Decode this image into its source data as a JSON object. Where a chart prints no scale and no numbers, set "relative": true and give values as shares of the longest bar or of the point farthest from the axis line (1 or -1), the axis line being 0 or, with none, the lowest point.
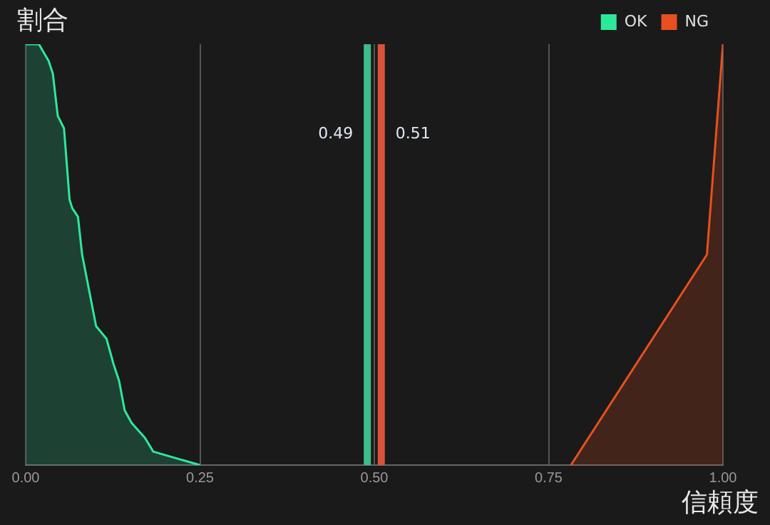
{
  "chart_data": {
    "type": "area",
    "xlabel": "信頼度",
    "ylabel": "割合",
    "relative": true,
    "xlim": [
      0,
      1
    ],
    "xticks": [
      {
        "value": 0,
        "label": "0.00"
      },
      0.25,
      {
        "value": 0.5,
        "label": "0.50"
      },
      0.75,
      {
        "value": 1,
        "label": "1.00"
      }
    ],
    "grid": "x",
    "legend": "top right",
    "series": [
      {
        "name": "OK",
        "color": "#2ee89a",
        "x": [
          0,
          0.019,
          0.033,
          0.039,
          0.046,
          0.055,
          0.063,
          0.067,
          0.075,
          0.081,
          0.101,
          0.116,
          0.126,
          0.134,
          0.142,
          0.152,
          0.171,
          0.183,
          0.25
        ],
        "values": [
          1,
          1,
          0.96,
          0.93,
          0.83,
          0.8,
          0.63,
          0.61,
          0.59,
          0.5,
          0.33,
          0.3,
          0.24,
          0.2,
          0.13,
          0.1,
          0.065,
          0.032,
          0
        ]
      },
      {
        "name": "NG",
        "color": "#e8501f",
        "x": [
          0.782,
          0.977,
          1
        ],
        "values": [
          0,
          0.5,
          1
        ]
      }
    ],
    "ref_lines": [
      {
        "axis": "x",
        "value": 0.49,
        "label": "0.49",
        "color": "#3dbd8a"
      },
      {
        "axis": "x",
        "value": 0.51,
        "label": "0.51",
        "color": "#d9533a"
      }
    ]
  }
}
